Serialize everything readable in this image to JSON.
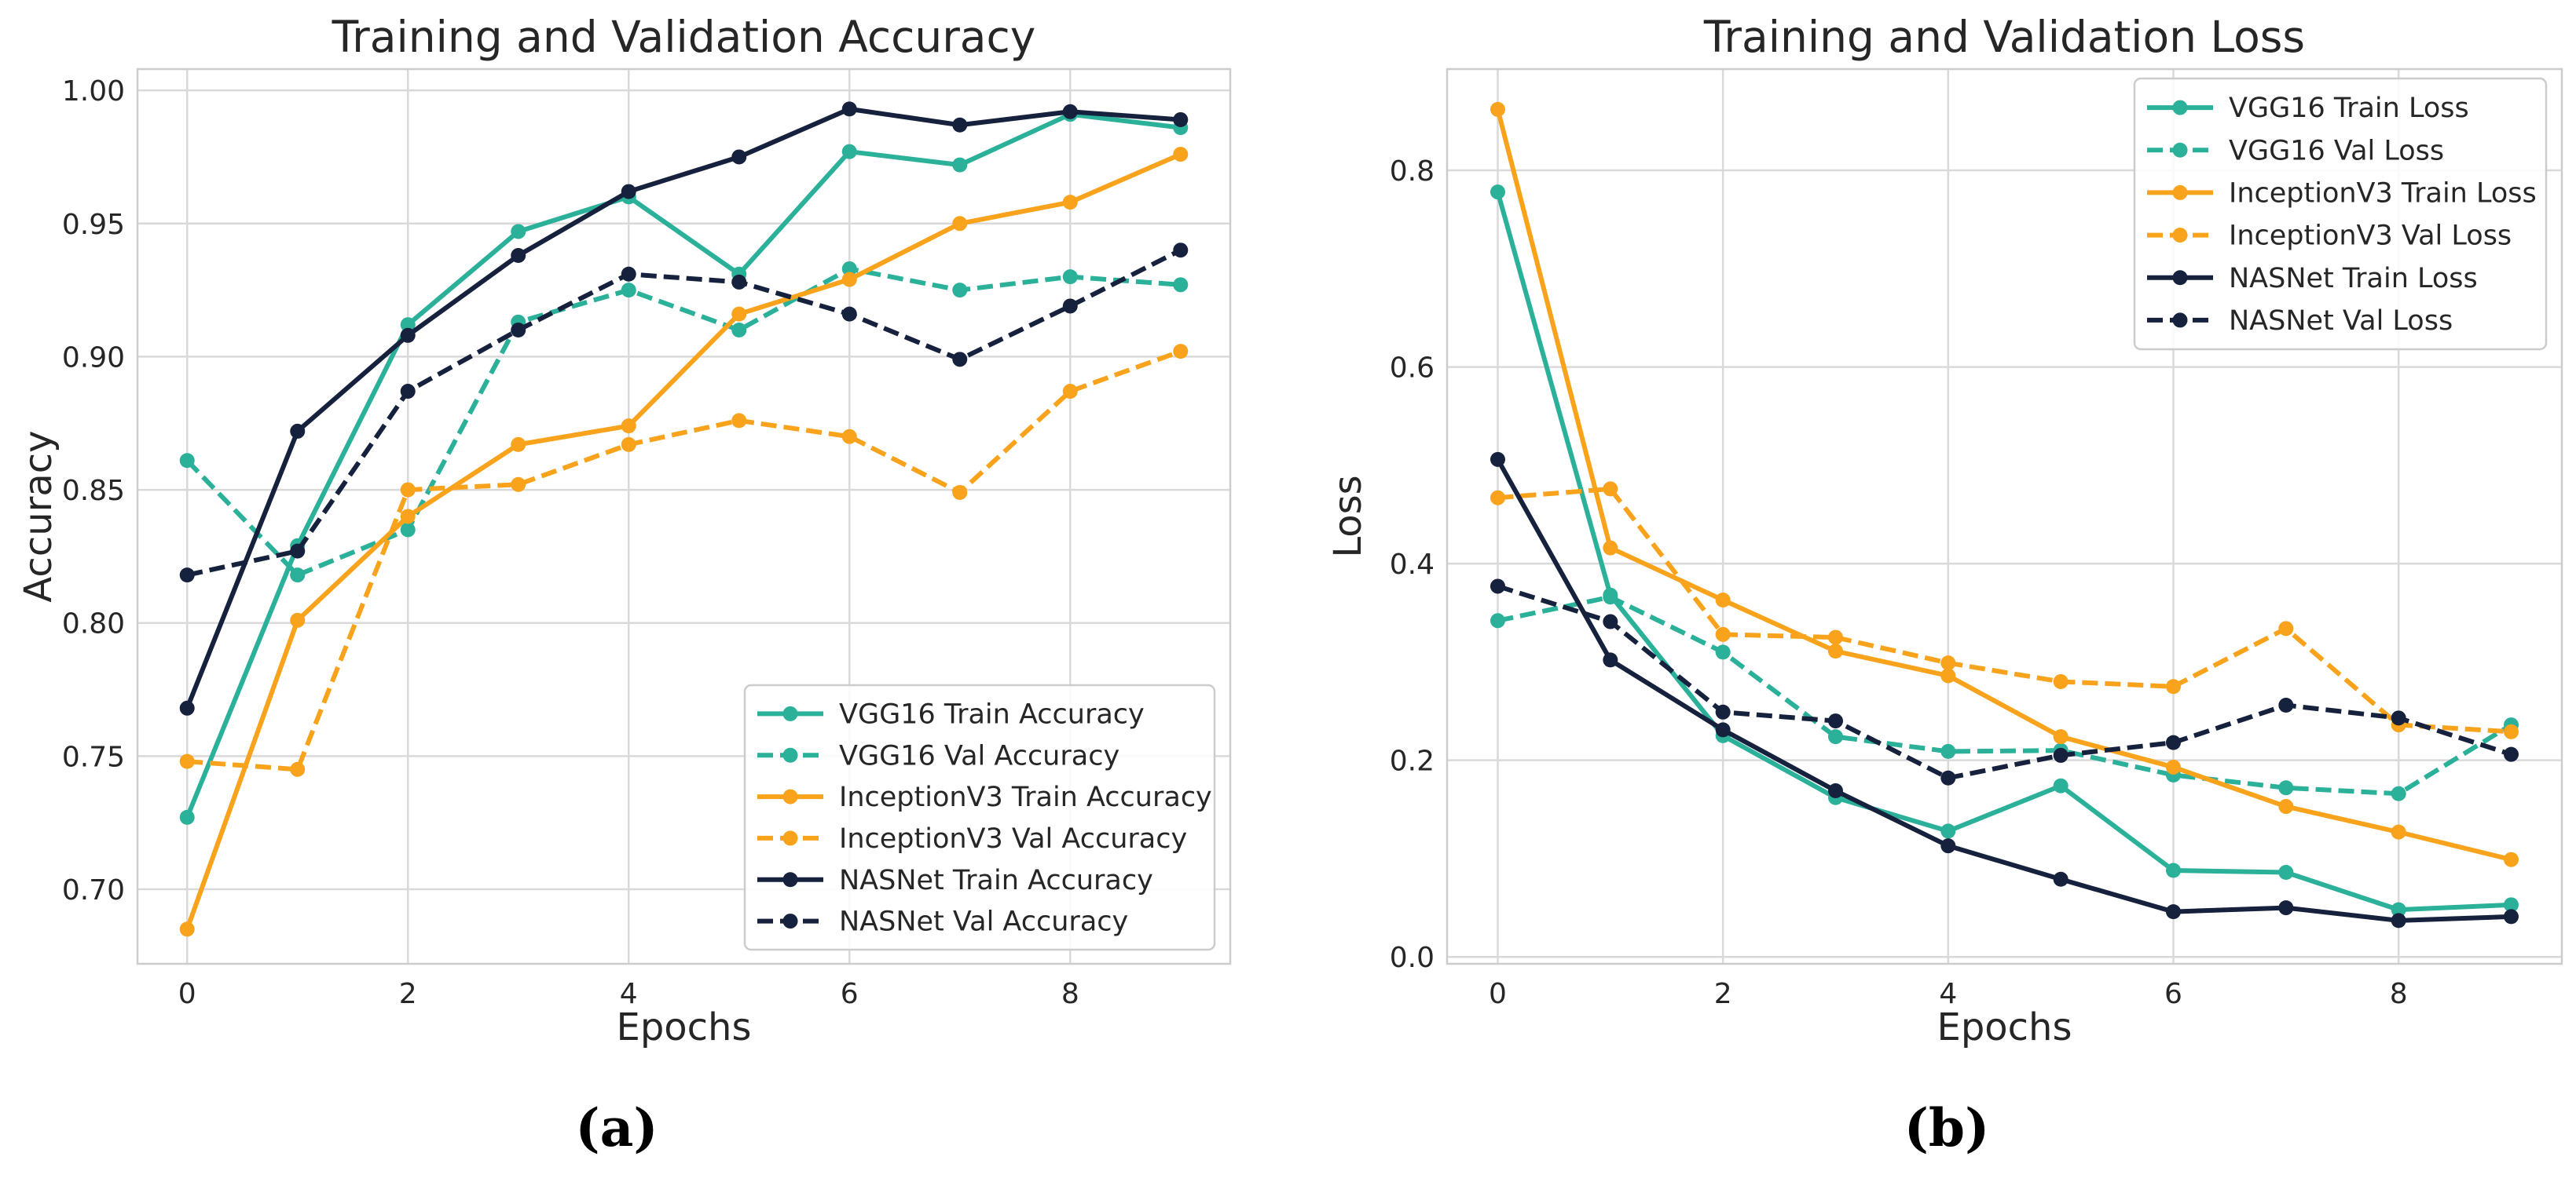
{
  "colors": {
    "vgg16": "#2bb09a",
    "inceptionv3": "#f8a31b",
    "nasnet": "#16213d",
    "grid": "#d9d9d9",
    "frame": "#cccccc"
  },
  "chart_data": [
    {
      "type": "line",
      "title": "Training and Validation Accuracy",
      "xlabel": "Epochs",
      "ylabel": "Accuracy",
      "caption": "(a)",
      "x": [
        0,
        1,
        2,
        3,
        4,
        5,
        6,
        7,
        8,
        9
      ],
      "xlim": [
        -0.45,
        9.45
      ],
      "ylim": [
        0.672,
        1.008
      ],
      "xticks": [
        0,
        2,
        4,
        6,
        8
      ],
      "yticks": [
        0.7,
        0.75,
        0.8,
        0.85,
        0.9,
        0.95,
        1.0
      ],
      "ytick_labels": [
        "0.70",
        "0.75",
        "0.80",
        "0.85",
        "0.90",
        "0.95",
        "1.00"
      ],
      "grid": true,
      "legend_position": "lower-right",
      "series": [
        {
          "name": "VGG16 Train Accuracy",
          "color_key": "vgg16",
          "style": "solid",
          "values": [
            0.727,
            0.829,
            0.912,
            0.947,
            0.96,
            0.931,
            0.977,
            0.972,
            0.991,
            0.986
          ]
        },
        {
          "name": "VGG16 Val Accuracy",
          "color_key": "vgg16",
          "style": "dashed",
          "values": [
            0.861,
            0.818,
            0.835,
            0.913,
            0.925,
            0.91,
            0.933,
            0.925,
            0.93,
            0.927
          ]
        },
        {
          "name": "InceptionV3 Train Accuracy",
          "color_key": "inceptionv3",
          "style": "solid",
          "values": [
            0.685,
            0.801,
            0.84,
            0.867,
            0.874,
            0.916,
            0.929,
            0.95,
            0.958,
            0.976
          ]
        },
        {
          "name": "InceptionV3 Val Accuracy",
          "color_key": "inceptionv3",
          "style": "dashed",
          "values": [
            0.748,
            0.745,
            0.85,
            0.852,
            0.867,
            0.876,
            0.87,
            0.849,
            0.887,
            0.902
          ]
        },
        {
          "name": "NASNet Train Accuracy",
          "color_key": "nasnet",
          "style": "solid",
          "values": [
            0.768,
            0.872,
            0.908,
            0.938,
            0.962,
            0.975,
            0.993,
            0.987,
            0.992,
            0.989
          ]
        },
        {
          "name": "NASNet Val Accuracy",
          "color_key": "nasnet",
          "style": "dashed",
          "values": [
            0.818,
            0.827,
            0.887,
            0.91,
            0.931,
            0.928,
            0.916,
            0.899,
            0.919,
            0.94
          ]
        }
      ]
    },
    {
      "type": "line",
      "title": "Training and Validation Loss",
      "xlabel": "Epochs",
      "ylabel": "Loss",
      "caption": "(b)",
      "x": [
        0,
        1,
        2,
        3,
        4,
        5,
        6,
        7,
        8,
        9
      ],
      "xlim": [
        -0.45,
        9.45
      ],
      "ylim": [
        -0.007,
        0.903
      ],
      "xticks": [
        0,
        2,
        4,
        6,
        8
      ],
      "yticks": [
        0.0,
        0.2,
        0.4,
        0.6,
        0.8
      ],
      "ytick_labels": [
        "0.0",
        "0.2",
        "0.4",
        "0.6",
        "0.8"
      ],
      "grid": true,
      "legend_position": "upper-right",
      "series": [
        {
          "name": "VGG16 Train Loss",
          "color_key": "vgg16",
          "style": "solid",
          "values": [
            0.778,
            0.368,
            0.225,
            0.162,
            0.128,
            0.174,
            0.088,
            0.086,
            0.048,
            0.053
          ]
        },
        {
          "name": "VGG16 Val Loss",
          "color_key": "vgg16",
          "style": "dashed",
          "values": [
            0.342,
            0.366,
            0.31,
            0.224,
            0.209,
            0.21,
            0.185,
            0.172,
            0.166,
            0.236
          ]
        },
        {
          "name": "InceptionV3 Train Loss",
          "color_key": "inceptionv3",
          "style": "solid",
          "values": [
            0.862,
            0.416,
            0.363,
            0.311,
            0.286,
            0.224,
            0.193,
            0.153,
            0.127,
            0.099
          ]
        },
        {
          "name": "InceptionV3 Val Loss",
          "color_key": "inceptionv3",
          "style": "dashed",
          "values": [
            0.467,
            0.476,
            0.328,
            0.325,
            0.299,
            0.28,
            0.275,
            0.334,
            0.236,
            0.229
          ]
        },
        {
          "name": "NASNet Train Loss",
          "color_key": "nasnet",
          "style": "solid",
          "values": [
            0.506,
            0.302,
            0.231,
            0.169,
            0.113,
            0.079,
            0.046,
            0.05,
            0.037,
            0.041
          ]
        },
        {
          "name": "NASNet Val Loss",
          "color_key": "nasnet",
          "style": "dashed",
          "values": [
            0.377,
            0.341,
            0.249,
            0.24,
            0.182,
            0.205,
            0.218,
            0.256,
            0.243,
            0.206
          ]
        }
      ]
    }
  ]
}
